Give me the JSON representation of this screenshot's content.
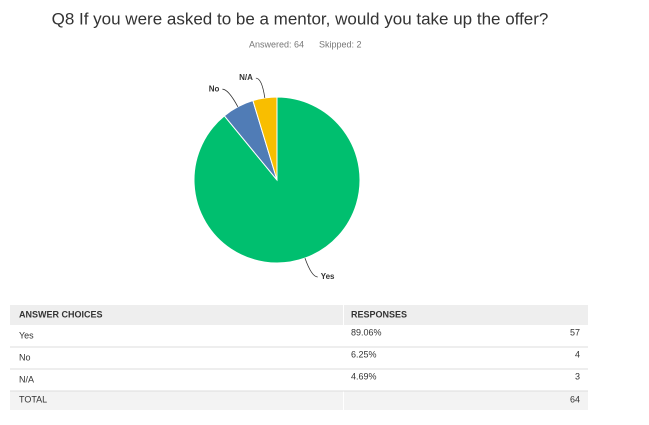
{
  "chart_data": {
    "type": "pie",
    "title": "Q8 If you were asked to be a mentor, would you take up the offer?",
    "answered": "Answered: 64",
    "skipped": "Skipped: 2",
    "categories": [
      "Yes",
      "No",
      "N/A"
    ],
    "values": [
      89.06,
      6.25,
      4.69
    ],
    "value_labels": [
      "89.06%",
      "6.25%",
      "4.69%"
    ],
    "colors": [
      "#00bf6f",
      "#507cb6",
      "#f9be00"
    ],
    "counts": [
      57,
      4,
      3
    ]
  },
  "table": {
    "headers": [
      "ANSWER CHOICES",
      "RESPONSES"
    ],
    "total_label": "TOTAL",
    "total": 64
  }
}
